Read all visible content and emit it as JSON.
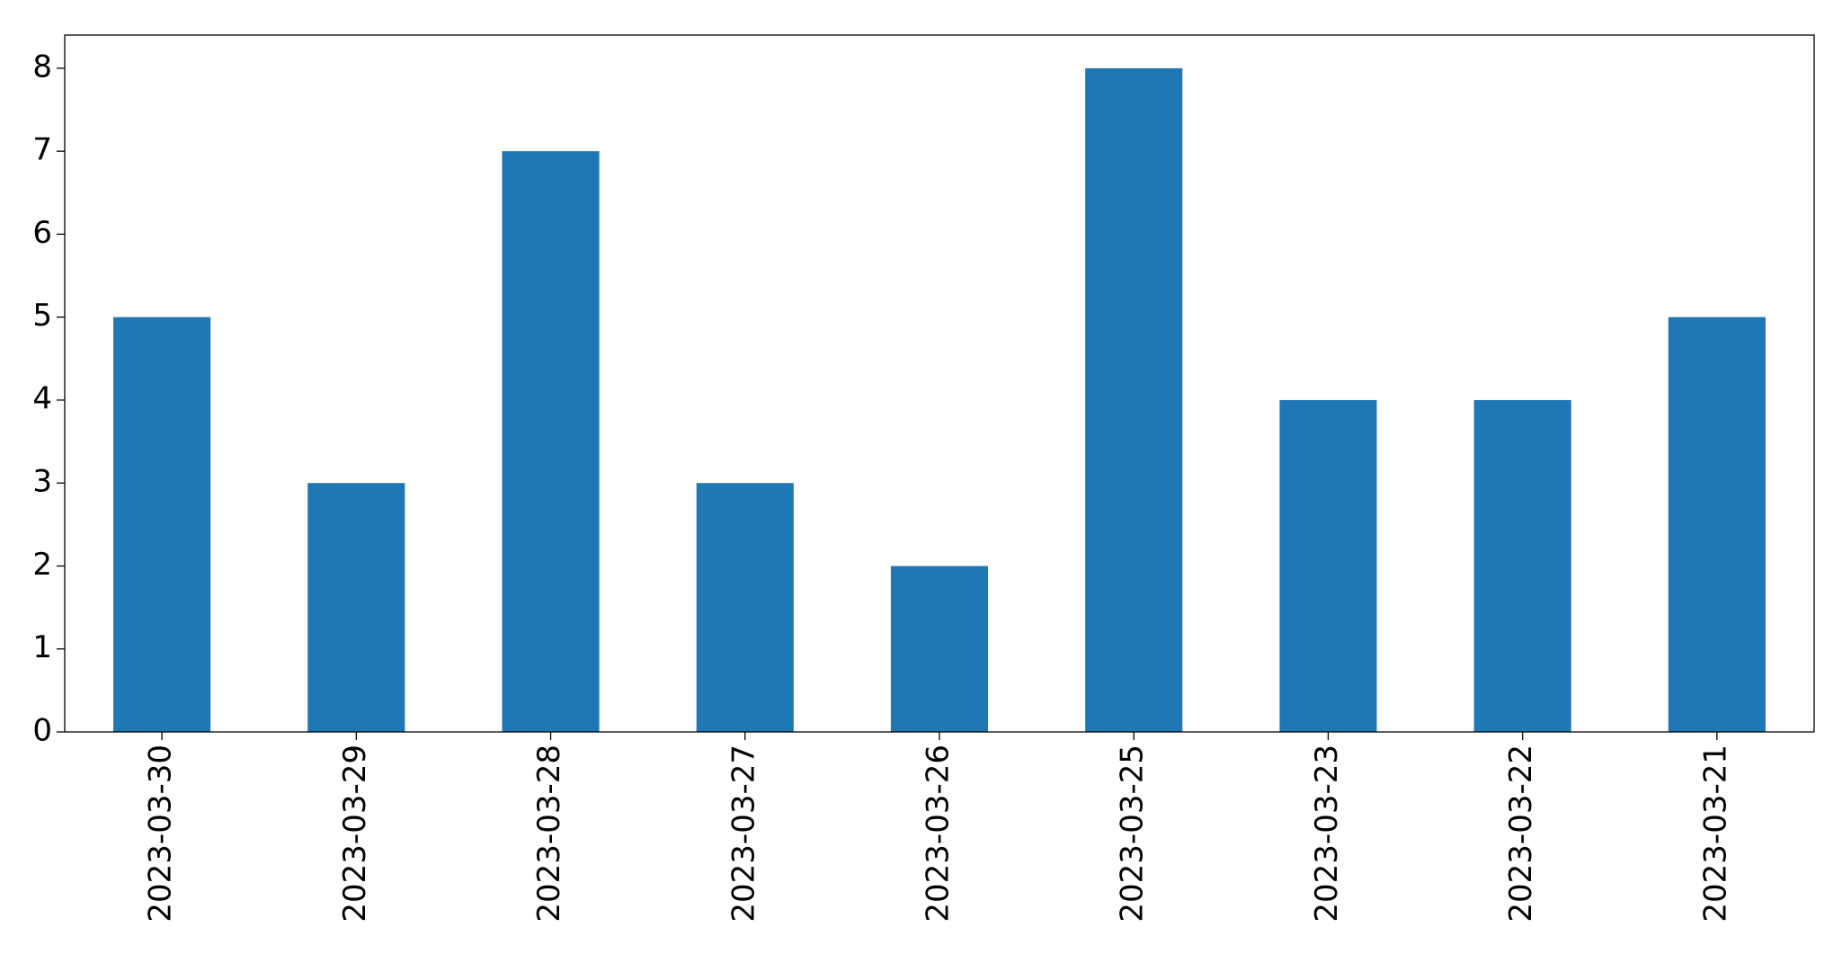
{
  "chart_data": {
    "type": "bar",
    "categories": [
      "2023-03-30",
      "2023-03-29",
      "2023-03-28",
      "2023-03-27",
      "2023-03-26",
      "2023-03-25",
      "2023-03-23",
      "2023-03-22",
      "2023-03-21"
    ],
    "values": [
      5,
      3,
      7,
      3,
      2,
      8,
      4,
      4,
      5
    ],
    "color": "#1f77b4",
    "ylim": [
      0,
      8.4
    ],
    "yticks": [
      0,
      1,
      2,
      3,
      4,
      5,
      6,
      7,
      8
    ],
    "grid": false
  }
}
